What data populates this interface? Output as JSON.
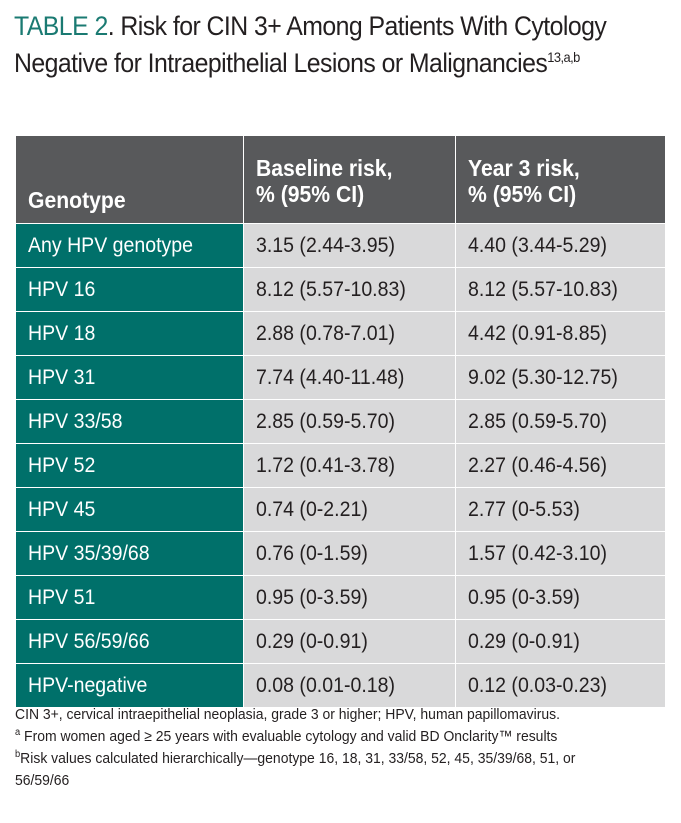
{
  "title": {
    "number": "TABLE 2",
    "text": ". Risk for CIN 3+ Among Patients With Cytology Negative for Intraepithelial Lesions or Malignancies",
    "refs": "13,a,b"
  },
  "table": {
    "headers": [
      "Genotype",
      "Baseline risk, % (95% CI)",
      "Year 3 risk, % (95% CI)"
    ],
    "rows": [
      [
        "Any HPV genotype",
        "3.15 (2.44-3.95)",
        "4.40 (3.44-5.29)"
      ],
      [
        "HPV 16",
        "8.12 (5.57-10.83)",
        "8.12 (5.57-10.83)"
      ],
      [
        "HPV 18",
        "2.88 (0.78-7.01)",
        "4.42 (0.91-8.85)"
      ],
      [
        "HPV 31",
        "7.74 (4.40-11.48)",
        "9.02 (5.30-12.75)"
      ],
      [
        "HPV 33/58",
        "2.85 (0.59-5.70)",
        "2.85 (0.59-5.70)"
      ],
      [
        "HPV 52",
        "1.72 (0.41-3.78)",
        "2.27 (0.46-4.56)"
      ],
      [
        "HPV 45",
        "0.74 (0-2.21)",
        "2.77 (0-5.53)"
      ],
      [
        "HPV 35/39/68",
        "0.76 (0-1.59)",
        "1.57 (0.42-3.10)"
      ],
      [
        "HPV 51",
        "0.95 (0-3.59)",
        "0.95 (0-3.59)"
      ],
      [
        "HPV 56/59/66",
        "0.29 (0-0.91)",
        "0.29 (0-0.91)"
      ],
      [
        "HPV-negative",
        "0.08 (0.01-0.18)",
        "0.12 (0.03-0.23)"
      ]
    ]
  },
  "footnotes": {
    "abbreviations": "CIN 3+, cervical intraepithelial neoplasia, grade 3 or higher; HPV, human papillomavirus.",
    "a_mark": "a",
    "a_text": " From women aged ≥ 25 years with evaluable cytology and valid BD Onclarity™ results",
    "b_mark": "b",
    "b_text": "Risk values calculated hierarchically—genotype 16, 18, 31, 33/58, 52, 45, 35/39/68, 51, or 56/59/66"
  },
  "colors": {
    "accent_teal": "#00706a",
    "title_number": "#1a7a72",
    "header_gray": "#58595b",
    "cell_gray": "#d9d9da"
  }
}
